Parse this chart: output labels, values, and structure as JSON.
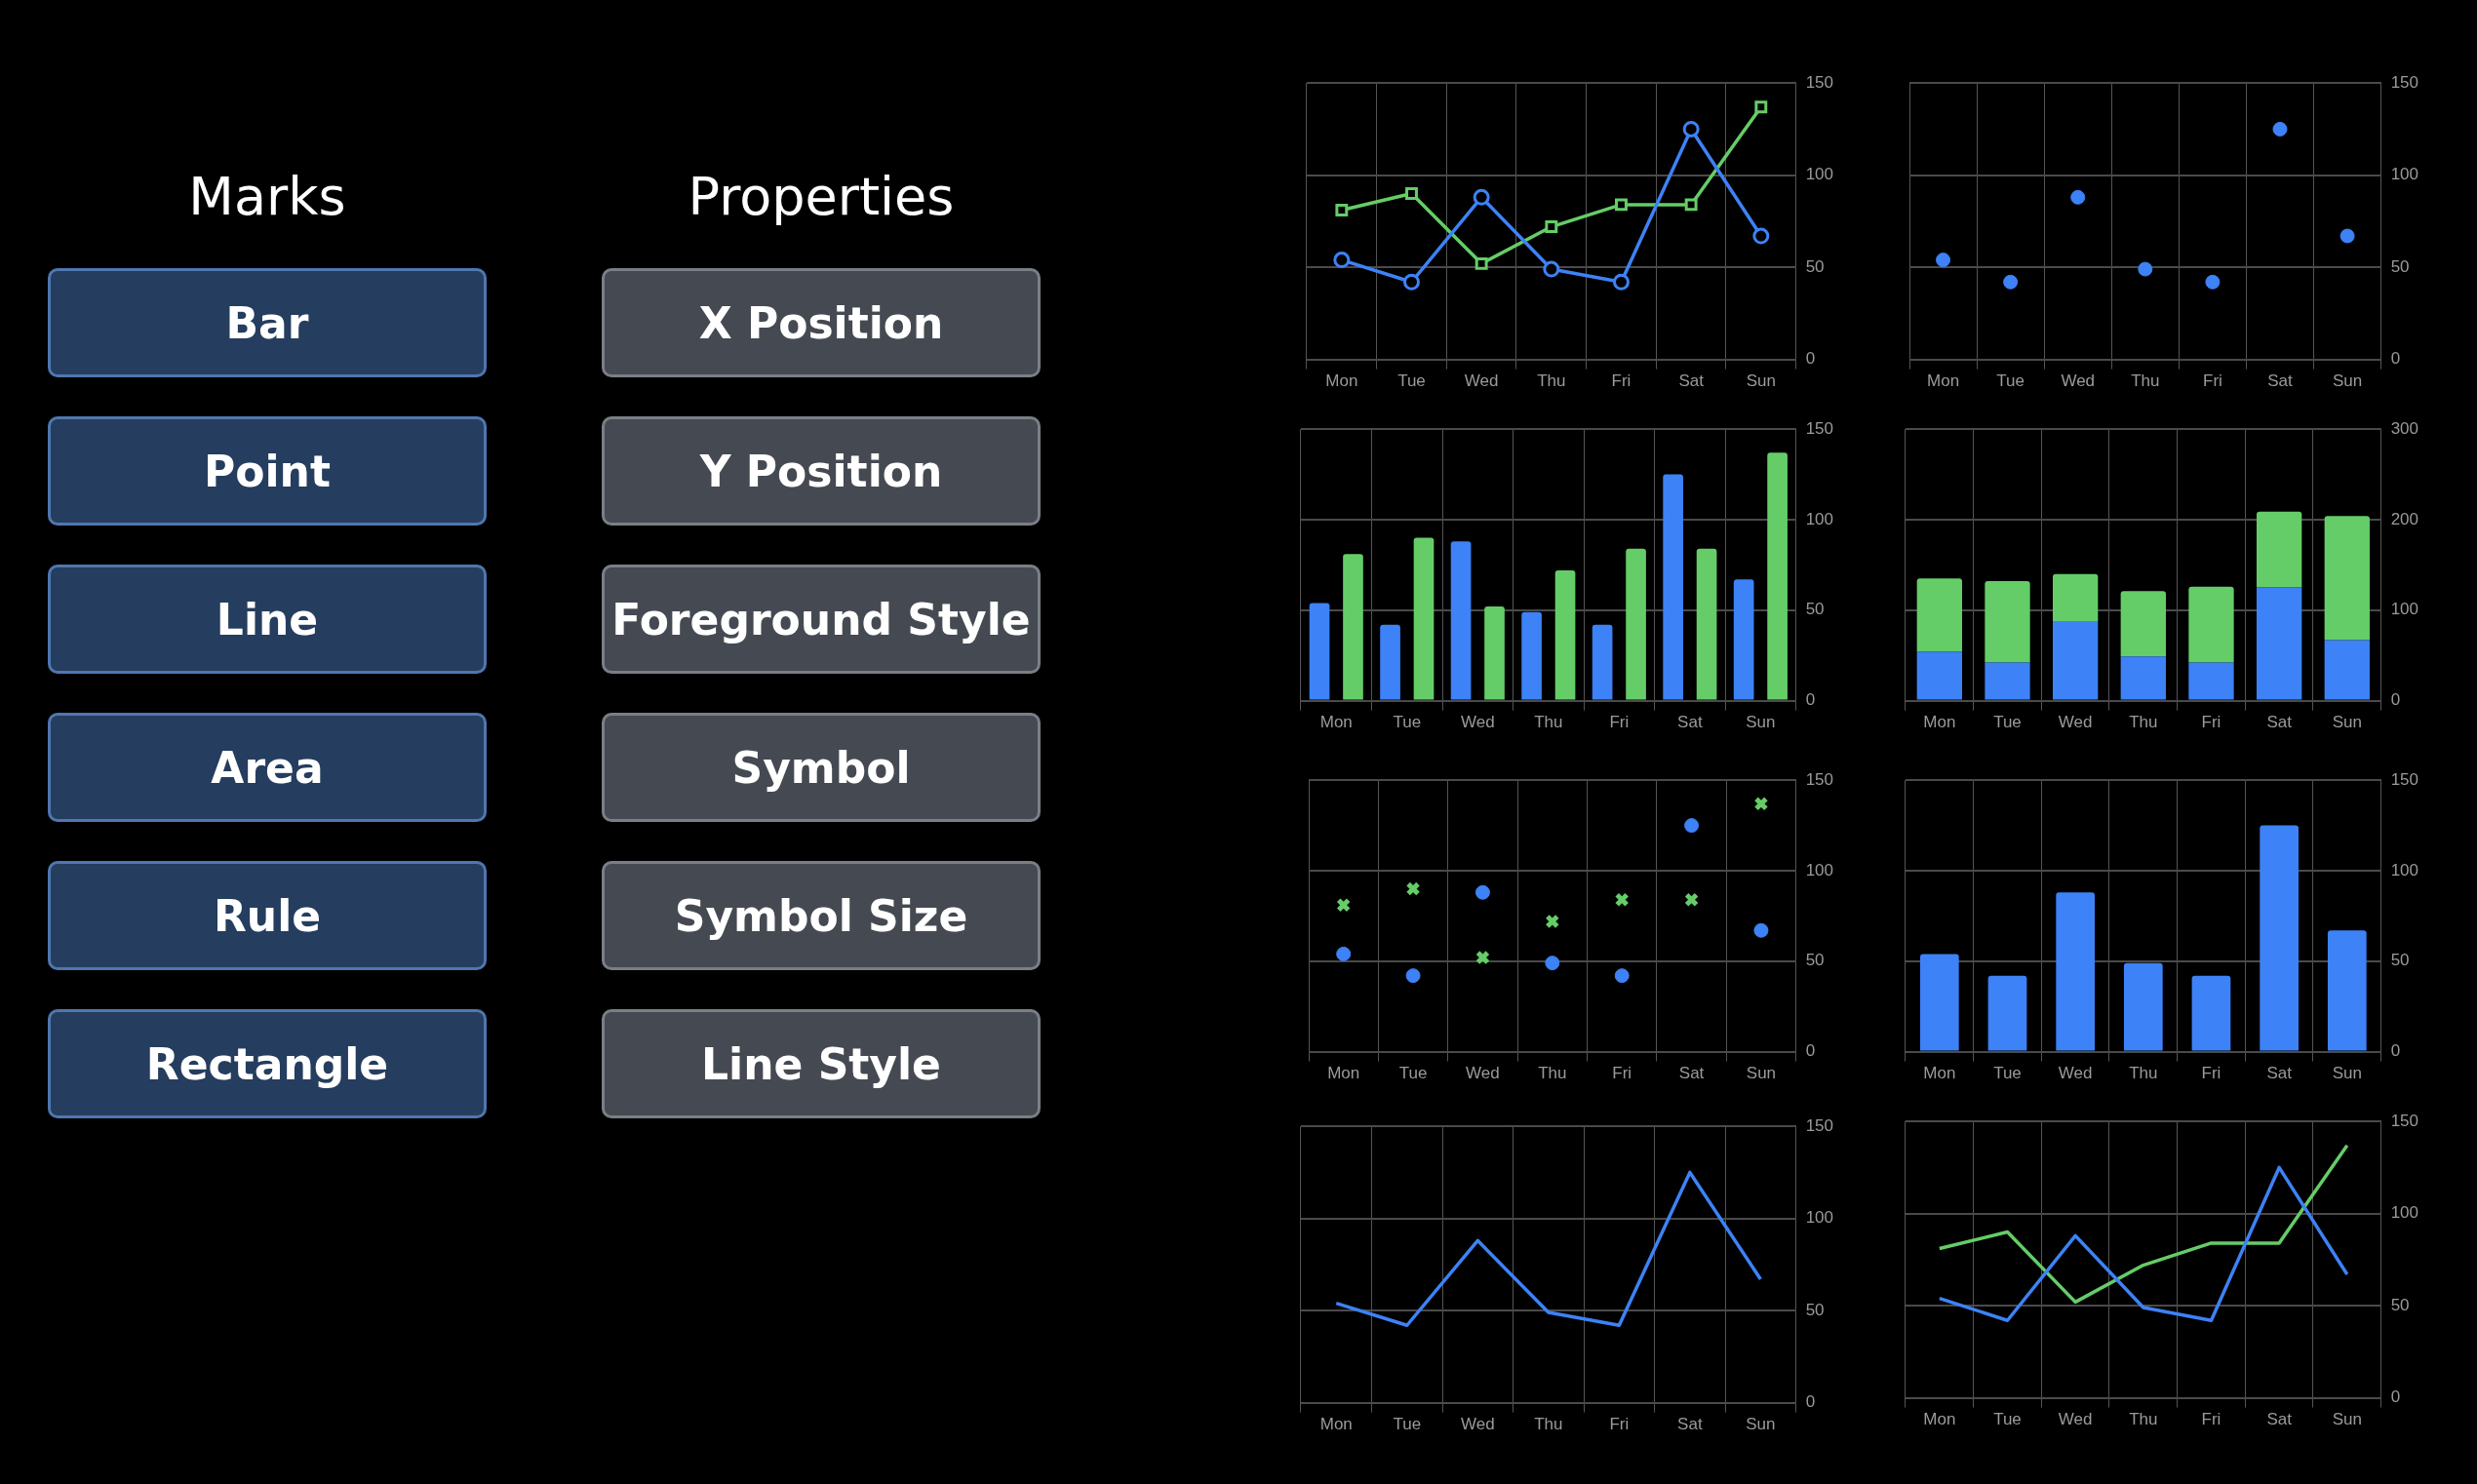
{
  "chart_data": [
    {
      "type": "other",
      "title": "Marks",
      "annotations": [
        "Bar",
        "Point",
        "Line",
        "Area",
        "Rule",
        "Rectangle"
      ]
    },
    {
      "type": "other",
      "title": "Properties",
      "annotations": [
        "X Position",
        "Y Position",
        "Foreground Style",
        "Symbol",
        "Symbol Size",
        "Line Style"
      ]
    },
    {
      "type": "line",
      "categories": [
        "Mon",
        "Tue",
        "Wed",
        "Thu",
        "Fri",
        "Sat",
        "Sun"
      ],
      "ylim": [
        0,
        150
      ],
      "yticks": [
        0,
        50,
        100,
        150
      ],
      "grid": true,
      "series": [
        {
          "color": "#3d82f6",
          "marker": "circle",
          "values": [
            54,
            42,
            88,
            49,
            42,
            125,
            67
          ]
        },
        {
          "color": "#65cd67",
          "marker": "square",
          "values": [
            81,
            90,
            52,
            72,
            84,
            84,
            137
          ]
        }
      ]
    },
    {
      "type": "scatter",
      "categories": [
        "Mon",
        "Tue",
        "Wed",
        "Thu",
        "Fri",
        "Sat",
        "Sun"
      ],
      "ylim": [
        0,
        150
      ],
      "yticks": [
        0,
        50,
        100,
        150
      ],
      "grid": true,
      "marker": "circle",
      "series": [
        {
          "color": "#3d82f6",
          "values": [
            54,
            42,
            88,
            49,
            42,
            125,
            67
          ]
        }
      ]
    },
    {
      "type": "bar",
      "categories": [
        "Mon",
        "Tue",
        "Wed",
        "Thu",
        "Fri",
        "Sat",
        "Sun"
      ],
      "ylim": [
        0,
        150
      ],
      "yticks": [
        0,
        50,
        100,
        150
      ],
      "grid": true,
      "series": [
        {
          "color": "#3d82f6",
          "values": [
            54,
            42,
            88,
            49,
            42,
            125,
            67
          ]
        },
        {
          "color": "#65cd67",
          "values": [
            81,
            90,
            52,
            72,
            84,
            84,
            137
          ]
        }
      ]
    },
    {
      "type": "bar",
      "stacked": true,
      "categories": [
        "Mon",
        "Tue",
        "Wed",
        "Thu",
        "Fri",
        "Sat",
        "Sun"
      ],
      "ylim": [
        0,
        300
      ],
      "yticks": [
        0,
        100,
        200,
        300
      ],
      "grid": true,
      "series": [
        {
          "color": "#3d82f6",
          "values": [
            54,
            42,
            88,
            49,
            42,
            125,
            67
          ]
        },
        {
          "color": "#65cd67",
          "values": [
            81,
            90,
            52,
            72,
            84,
            84,
            137
          ]
        }
      ]
    },
    {
      "type": "scatter",
      "categories": [
        "Mon",
        "Tue",
        "Wed",
        "Thu",
        "Fri",
        "Sat",
        "Sun"
      ],
      "ylim": [
        0,
        150
      ],
      "yticks": [
        0,
        50,
        100,
        150
      ],
      "grid": true,
      "series": [
        {
          "color": "#3d82f6",
          "marker": "circle",
          "values": [
            54,
            42,
            88,
            49,
            42,
            125,
            67
          ]
        },
        {
          "color": "#65cd67",
          "marker": "cross",
          "values": [
            81,
            90,
            52,
            72,
            84,
            84,
            137
          ]
        }
      ]
    },
    {
      "type": "bar",
      "categories": [
        "Mon",
        "Tue",
        "Wed",
        "Thu",
        "Fri",
        "Sat",
        "Sun"
      ],
      "ylim": [
        0,
        150
      ],
      "yticks": [
        0,
        50,
        100,
        150
      ],
      "grid": true,
      "series": [
        {
          "color": "#3d82f6",
          "values": [
            54,
            42,
            88,
            49,
            42,
            125,
            67
          ]
        }
      ]
    },
    {
      "type": "line",
      "categories": [
        "Mon",
        "Tue",
        "Wed",
        "Thu",
        "Fri",
        "Sat",
        "Sun"
      ],
      "ylim": [
        0,
        150
      ],
      "yticks": [
        0,
        50,
        100,
        150
      ],
      "grid": true,
      "marker": "none",
      "series": [
        {
          "color": "#3d82f6",
          "values": [
            54,
            42,
            88,
            49,
            42,
            125,
            67
          ]
        }
      ]
    },
    {
      "type": "line",
      "categories": [
        "Mon",
        "Tue",
        "Wed",
        "Thu",
        "Fri",
        "Sat",
        "Sun"
      ],
      "ylim": [
        0,
        150
      ],
      "yticks": [
        0,
        50,
        100,
        150
      ],
      "grid": true,
      "marker": "none",
      "series": [
        {
          "color": "#3d82f6",
          "values": [
            54,
            42,
            88,
            49,
            42,
            125,
            67
          ]
        },
        {
          "color": "#65cd67",
          "values": [
            81,
            90,
            52,
            72,
            84,
            84,
            137
          ]
        }
      ]
    }
  ]
}
